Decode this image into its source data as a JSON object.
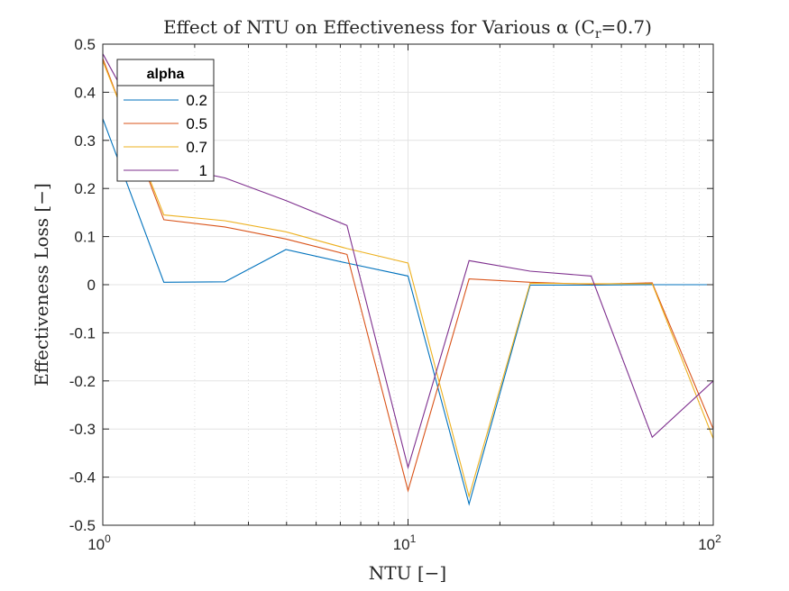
{
  "chart_data": {
    "type": "line",
    "title": "Effect of NTU on Effectiveness for Various α (C",
    "title_sub": "r",
    "title_suffix": "=0.7)",
    "xlabel": "NTU [−]",
    "ylabel": "Effectiveness Loss [−]",
    "xscale": "log",
    "xlim": [
      1,
      100
    ],
    "ylim": [
      -0.5,
      0.5
    ],
    "grid": true,
    "x_ticks": [
      {
        "value": 1,
        "base": "10",
        "exp": "0"
      },
      {
        "value": 10,
        "base": "10",
        "exp": "1"
      },
      {
        "value": 100,
        "base": "10",
        "exp": "2"
      }
    ],
    "y_ticks": [
      {
        "value": 0.5,
        "label": "0.5"
      },
      {
        "value": 0.4,
        "label": "0.4"
      },
      {
        "value": 0.3,
        "label": "0.3"
      },
      {
        "value": 0.2,
        "label": "0.2"
      },
      {
        "value": 0.1,
        "label": "0.1"
      },
      {
        "value": 0,
        "label": "0"
      },
      {
        "value": -0.1,
        "label": "-0.1"
      },
      {
        "value": -0.2,
        "label": "-0.2"
      },
      {
        "value": -0.3,
        "label": "-0.3"
      },
      {
        "value": -0.4,
        "label": "-0.4"
      },
      {
        "value": -0.5,
        "label": "-0.5"
      }
    ],
    "x": [
      1,
      1.585,
      2.512,
      3.981,
      6.31,
      10,
      15.85,
      25.12,
      39.81,
      63.1,
      100
    ],
    "legend": {
      "title": "alpha",
      "position": "top-left"
    },
    "series": [
      {
        "name": "0.2",
        "color": "#0072BD",
        "values": [
          0.345,
          0.005,
          0.006,
          0.073,
          0.045,
          0.018,
          -0.456,
          -0.001,
          -0.001,
          0.0,
          0.0
        ]
      },
      {
        "name": "0.5",
        "color": "#D95319",
        "values": [
          0.47,
          0.135,
          0.12,
          0.095,
          0.063,
          -0.428,
          0.012,
          0.005,
          0.001,
          0.004,
          -0.3
        ]
      },
      {
        "name": "0.7",
        "color": "#EDB120",
        "values": [
          0.465,
          0.145,
          0.133,
          0.11,
          0.075,
          0.045,
          -0.44,
          0.003,
          0.002,
          0.002,
          -0.32
        ]
      },
      {
        "name": "1",
        "color": "#7E2F8E",
        "values": [
          0.48,
          0.248,
          0.222,
          0.175,
          0.123,
          -0.38,
          0.05,
          0.028,
          0.018,
          -0.317,
          -0.2
        ]
      }
    ]
  }
}
